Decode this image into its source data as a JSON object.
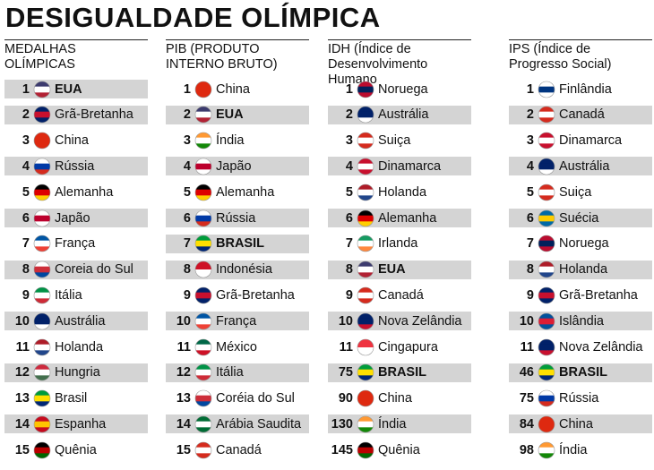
{
  "title": "DESIGUALDADE OLÍMPICA",
  "columns": [
    {
      "header": "MEDALHAS OLÍMPICAS",
      "rows": [
        {
          "rank": 1,
          "name": "EUA",
          "flag": [
            "#3c3b6e",
            "#fff",
            "#b22234"
          ]
        },
        {
          "rank": 2,
          "name": "Grã-Bretanha",
          "flag": [
            "#012169",
            "#c8102e",
            "#012169"
          ]
        },
        {
          "rank": 3,
          "name": "China",
          "flag": [
            "#de2910",
            "#de2910"
          ]
        },
        {
          "rank": 4,
          "name": "Rússia",
          "flag": [
            "#fff",
            "#0039a6",
            "#d52b1e"
          ]
        },
        {
          "rank": 5,
          "name": "Alemanha",
          "flag": [
            "#000",
            "#dd0000",
            "#ffce00"
          ]
        },
        {
          "rank": 6,
          "name": "Japão",
          "flag": [
            "#fff",
            "#bc002d",
            "#fff"
          ]
        },
        {
          "rank": 7,
          "name": "França",
          "flag": [
            "#0055a4",
            "#fff",
            "#ef4135"
          ]
        },
        {
          "rank": 8,
          "name": "Coreia do Sul",
          "flag": [
            "#fff",
            "#cd2e3a",
            "#0047a0"
          ]
        },
        {
          "rank": 9,
          "name": "Itália",
          "flag": [
            "#009246",
            "#fff",
            "#ce2b37"
          ]
        },
        {
          "rank": 10,
          "name": "Austrália",
          "flag": [
            "#012169",
            "#012169",
            "#fff"
          ]
        },
        {
          "rank": 11,
          "name": "Holanda",
          "flag": [
            "#ae1c28",
            "#fff",
            "#21468b"
          ]
        },
        {
          "rank": 12,
          "name": "Hungria",
          "flag": [
            "#cd2a3e",
            "#fff",
            "#436f4d"
          ]
        },
        {
          "rank": 13,
          "name": "Brasil",
          "flag": [
            "#009c3b",
            "#ffdf00",
            "#002776"
          ]
        },
        {
          "rank": 14,
          "name": "Espanha",
          "flag": [
            "#c60b1e",
            "#ffc400",
            "#c60b1e"
          ]
        },
        {
          "rank": 15,
          "name": "Quênia",
          "flag": [
            "#000",
            "#bb0000",
            "#006600"
          ]
        }
      ]
    },
    {
      "header": "PIB (PRODUTO INTERNO BRUTO)",
      "rows": [
        {
          "rank": 1,
          "name": "China",
          "flag": [
            "#de2910",
            "#de2910"
          ]
        },
        {
          "rank": 2,
          "name": "EUA",
          "flag": [
            "#3c3b6e",
            "#fff",
            "#b22234"
          ]
        },
        {
          "rank": 3,
          "name": "Índia",
          "flag": [
            "#ff9933",
            "#fff",
            "#138808"
          ]
        },
        {
          "rank": 4,
          "name": "Japão",
          "flag": [
            "#fff",
            "#bc002d",
            "#fff"
          ]
        },
        {
          "rank": 5,
          "name": "Alemanha",
          "flag": [
            "#000",
            "#dd0000",
            "#ffce00"
          ]
        },
        {
          "rank": 6,
          "name": "Rússia",
          "flag": [
            "#fff",
            "#0039a6",
            "#d52b1e"
          ]
        },
        {
          "rank": 7,
          "name": "BRASIL",
          "flag": [
            "#009c3b",
            "#ffdf00",
            "#002776"
          ]
        },
        {
          "rank": 8,
          "name": "Indonésia",
          "flag": [
            "#ce1126",
            "#fff"
          ]
        },
        {
          "rank": 9,
          "name": "Grã-Bretanha",
          "flag": [
            "#012169",
            "#c8102e",
            "#012169"
          ]
        },
        {
          "rank": 10,
          "name": "França",
          "flag": [
            "#0055a4",
            "#fff",
            "#ef4135"
          ]
        },
        {
          "rank": 11,
          "name": "México",
          "flag": [
            "#006847",
            "#fff",
            "#ce1126"
          ]
        },
        {
          "rank": 12,
          "name": "Itália",
          "flag": [
            "#009246",
            "#fff",
            "#ce2b37"
          ]
        },
        {
          "rank": 13,
          "name": "Coréia do Sul",
          "flag": [
            "#fff",
            "#cd2e3a",
            "#0047a0"
          ]
        },
        {
          "rank": 14,
          "name": "Arábia Saudita",
          "flag": [
            "#006c35",
            "#fff",
            "#006c35"
          ]
        },
        {
          "rank": 15,
          "name": "Canadá",
          "flag": [
            "#d52b1e",
            "#fff",
            "#d52b1e"
          ]
        }
      ]
    },
    {
      "header": "IDH (Índice de Desenvolvimento Humano",
      "rows": [
        {
          "rank": 1,
          "name": "Noruega",
          "flag": [
            "#ba0c2f",
            "#00205b",
            "#ba0c2f"
          ]
        },
        {
          "rank": 2,
          "name": "Austrália",
          "flag": [
            "#012169",
            "#012169",
            "#fff"
          ]
        },
        {
          "rank": 3,
          "name": "Suiça",
          "flag": [
            "#d52b1e",
            "#fff",
            "#d52b1e"
          ]
        },
        {
          "rank": 4,
          "name": "Dinamarca",
          "flag": [
            "#c8102e",
            "#fff",
            "#c8102e"
          ]
        },
        {
          "rank": 5,
          "name": "Holanda",
          "flag": [
            "#ae1c28",
            "#fff",
            "#21468b"
          ]
        },
        {
          "rank": 6,
          "name": "Alemanha",
          "flag": [
            "#000",
            "#dd0000",
            "#ffce00"
          ]
        },
        {
          "rank": 7,
          "name": "Irlanda",
          "flag": [
            "#169b62",
            "#fff",
            "#ff883e"
          ]
        },
        {
          "rank": 8,
          "name": "EUA",
          "flag": [
            "#3c3b6e",
            "#fff",
            "#b22234"
          ]
        },
        {
          "rank": 9,
          "name": "Canadá",
          "flag": [
            "#d52b1e",
            "#fff",
            "#d52b1e"
          ]
        },
        {
          "rank": 10,
          "name": "Nova Zelândia",
          "flag": [
            "#012169",
            "#012169",
            "#c8102e"
          ]
        },
        {
          "rank": 11,
          "name": "Cingapura",
          "flag": [
            "#ef3340",
            "#fff"
          ]
        },
        {
          "rank": 75,
          "name": "BRASIL",
          "flag": [
            "#009c3b",
            "#ffdf00",
            "#002776"
          ]
        },
        {
          "rank": 90,
          "name": "China",
          "flag": [
            "#de2910",
            "#de2910"
          ]
        },
        {
          "rank": 130,
          "name": "Índia",
          "flag": [
            "#ff9933",
            "#fff",
            "#138808"
          ]
        },
        {
          "rank": 145,
          "name": "Quênia",
          "flag": [
            "#000",
            "#bb0000",
            "#006600"
          ]
        }
      ]
    },
    {
      "header": "IPS (Índice de Progresso Social)",
      "rows": [
        {
          "rank": 1,
          "name": "Finlândia",
          "flag": [
            "#fff",
            "#003580",
            "#fff"
          ]
        },
        {
          "rank": 2,
          "name": "Canadá",
          "flag": [
            "#d52b1e",
            "#fff",
            "#d52b1e"
          ]
        },
        {
          "rank": 3,
          "name": "Dinamarca",
          "flag": [
            "#c8102e",
            "#fff",
            "#c8102e"
          ]
        },
        {
          "rank": 4,
          "name": "Austrália",
          "flag": [
            "#012169",
            "#012169",
            "#fff"
          ]
        },
        {
          "rank": 5,
          "name": "Suiça",
          "flag": [
            "#d52b1e",
            "#fff",
            "#d52b1e"
          ]
        },
        {
          "rank": 6,
          "name": "Suécia",
          "flag": [
            "#006aa7",
            "#fecc00",
            "#006aa7"
          ]
        },
        {
          "rank": 7,
          "name": "Noruega",
          "flag": [
            "#ba0c2f",
            "#00205b",
            "#ba0c2f"
          ]
        },
        {
          "rank": 8,
          "name": "Holanda",
          "flag": [
            "#ae1c28",
            "#fff",
            "#21468b"
          ]
        },
        {
          "rank": 9,
          "name": "Grã-Bretanha",
          "flag": [
            "#012169",
            "#c8102e",
            "#012169"
          ]
        },
        {
          "rank": 10,
          "name": "Islândia",
          "flag": [
            "#02529c",
            "#dc1e35",
            "#02529c"
          ]
        },
        {
          "rank": 11,
          "name": "Nova Zelândia",
          "flag": [
            "#012169",
            "#012169",
            "#c8102e"
          ]
        },
        {
          "rank": 46,
          "name": "BRASIL",
          "flag": [
            "#009c3b",
            "#ffdf00",
            "#002776"
          ]
        },
        {
          "rank": 75,
          "name": "Rússia",
          "flag": [
            "#fff",
            "#0039a6",
            "#d52b1e"
          ]
        },
        {
          "rank": 84,
          "name": "China",
          "flag": [
            "#de2910",
            "#de2910"
          ]
        },
        {
          "rank": 98,
          "name": "Índia",
          "flag": [
            "#ff9933",
            "#fff",
            "#138808"
          ]
        }
      ]
    }
  ]
}
